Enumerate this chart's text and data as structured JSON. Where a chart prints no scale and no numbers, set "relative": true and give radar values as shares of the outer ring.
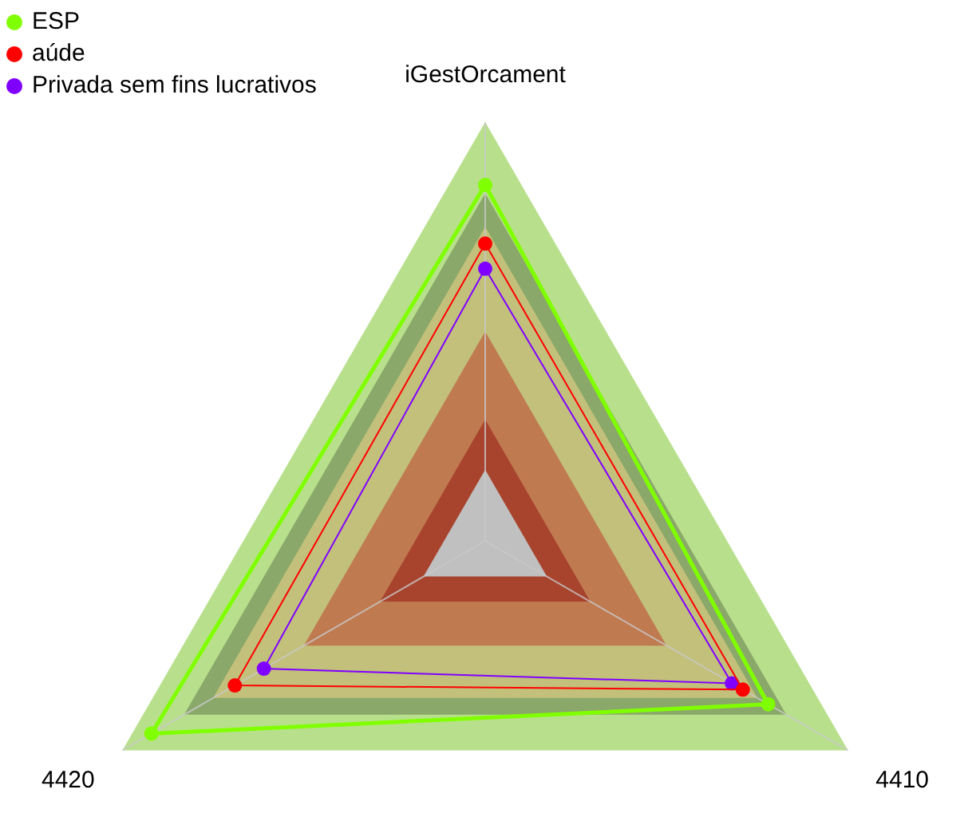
{
  "chart_data": {
    "type": "radar",
    "relative": true,
    "legend": "top left",
    "marker": "circle",
    "categories": [
      "iGestOrcament",
      "4410",
      "4420"
    ],
    "series": [
      {
        "name": "ESP",
        "color": "#80ff00",
        "values": [
          0.85,
          0.78,
          0.92
        ]
      },
      {
        "name": "aúde",
        "color": "#ff0000",
        "values": [
          0.71,
          0.71,
          0.69
        ]
      },
      {
        "name": "Privada sem fins lucrativos",
        "color": "#8000ff",
        "values": [
          0.65,
          0.68,
          0.61
        ]
      }
    ]
  }
}
